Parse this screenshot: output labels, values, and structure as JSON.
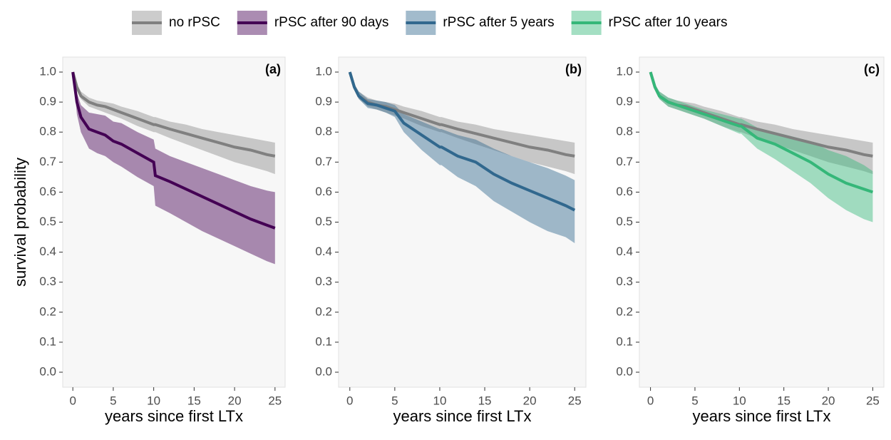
{
  "chart_data": [
    {
      "type": "line",
      "panel_label": "(a)",
      "xlabel": "years since first LTx",
      "ylabel": "survival probability",
      "xlim": [
        -1.25,
        26.25
      ],
      "xticks": [
        0,
        5,
        10,
        15,
        20,
        25
      ],
      "ylim": [
        -0.05,
        1.05
      ],
      "yticks": [
        {
          "value": 0,
          "label": "0.0"
        },
        0.1,
        0.2,
        0.3,
        0.4,
        0.5,
        0.6,
        0.7,
        0.8,
        0.9,
        {
          "value": 1,
          "label": "1.0"
        }
      ],
      "x": [
        0,
        0.5,
        1,
        2,
        3,
        4,
        5,
        6,
        8,
        10,
        10.2,
        12,
        14,
        16,
        18,
        20,
        22,
        24,
        25
      ],
      "series": [
        {
          "name": "no rPSC",
          "color": "#808080",
          "values": [
            1.0,
            0.95,
            0.92,
            0.9,
            0.89,
            0.885,
            0.875,
            0.865,
            0.845,
            0.825,
            0.825,
            0.81,
            0.795,
            0.78,
            0.765,
            0.75,
            0.74,
            0.725,
            0.72
          ],
          "lower": [
            1.0,
            0.94,
            0.91,
            0.885,
            0.875,
            0.865,
            0.855,
            0.845,
            0.82,
            0.8,
            0.8,
            0.78,
            0.76,
            0.74,
            0.72,
            0.7,
            0.685,
            0.67,
            0.66
          ],
          "upper": [
            1.0,
            0.96,
            0.935,
            0.915,
            0.905,
            0.9,
            0.895,
            0.885,
            0.87,
            0.85,
            0.85,
            0.835,
            0.825,
            0.81,
            0.8,
            0.79,
            0.78,
            0.77,
            0.765
          ]
        },
        {
          "name": "rPSC after 90 days",
          "color": "#440154",
          "values": [
            1.0,
            0.9,
            0.85,
            0.81,
            0.8,
            0.79,
            0.77,
            0.76,
            0.73,
            0.7,
            0.655,
            0.635,
            0.61,
            0.585,
            0.56,
            0.535,
            0.51,
            0.49,
            0.48
          ],
          "lower": [
            1.0,
            0.86,
            0.8,
            0.745,
            0.73,
            0.72,
            0.7,
            0.685,
            0.65,
            0.62,
            0.555,
            0.53,
            0.5,
            0.47,
            0.445,
            0.42,
            0.395,
            0.37,
            0.36
          ],
          "upper": [
            1.0,
            0.93,
            0.89,
            0.865,
            0.86,
            0.855,
            0.835,
            0.83,
            0.8,
            0.775,
            0.745,
            0.72,
            0.7,
            0.68,
            0.66,
            0.64,
            0.62,
            0.605,
            0.6
          ]
        }
      ]
    },
    {
      "type": "line",
      "panel_label": "(b)",
      "xlabel": "years since first LTx",
      "xlim": [
        -1.25,
        26.25
      ],
      "xticks": [
        0,
        5,
        10,
        15,
        20,
        25
      ],
      "ylim": [
        -0.05,
        1.05
      ],
      "yticks": [
        {
          "value": 0,
          "label": "0.0"
        },
        0.1,
        0.2,
        0.3,
        0.4,
        0.5,
        0.6,
        0.7,
        0.8,
        0.9,
        {
          "value": 1,
          "label": "1.0"
        }
      ],
      "x": [
        0,
        0.5,
        1,
        2,
        3,
        4,
        5,
        6,
        8,
        10,
        10.2,
        12,
        14,
        16,
        18,
        20,
        22,
        24,
        25
      ],
      "series": [
        {
          "name": "no rPSC",
          "color": "#808080",
          "values": [
            1.0,
            0.95,
            0.92,
            0.9,
            0.89,
            0.885,
            0.875,
            0.865,
            0.845,
            0.825,
            0.825,
            0.81,
            0.795,
            0.78,
            0.765,
            0.75,
            0.74,
            0.725,
            0.72
          ],
          "lower": [
            1.0,
            0.94,
            0.91,
            0.885,
            0.875,
            0.865,
            0.855,
            0.845,
            0.82,
            0.8,
            0.8,
            0.78,
            0.76,
            0.74,
            0.72,
            0.7,
            0.685,
            0.67,
            0.66
          ],
          "upper": [
            1.0,
            0.96,
            0.935,
            0.915,
            0.905,
            0.9,
            0.895,
            0.885,
            0.87,
            0.85,
            0.85,
            0.835,
            0.825,
            0.81,
            0.8,
            0.79,
            0.78,
            0.77,
            0.765
          ]
        },
        {
          "name": "rPSC after 5 years",
          "color": "#31688e",
          "values": [
            1.0,
            0.95,
            0.92,
            0.895,
            0.89,
            0.88,
            0.87,
            0.83,
            0.79,
            0.75,
            0.75,
            0.72,
            0.7,
            0.66,
            0.63,
            0.605,
            0.58,
            0.555,
            0.54
          ],
          "lower": [
            1.0,
            0.94,
            0.91,
            0.88,
            0.875,
            0.865,
            0.85,
            0.8,
            0.74,
            0.69,
            0.69,
            0.65,
            0.62,
            0.57,
            0.535,
            0.5,
            0.47,
            0.45,
            0.43
          ],
          "upper": [
            1.0,
            0.96,
            0.935,
            0.91,
            0.905,
            0.9,
            0.89,
            0.86,
            0.835,
            0.81,
            0.81,
            0.79,
            0.775,
            0.745,
            0.72,
            0.7,
            0.68,
            0.655,
            0.64
          ]
        }
      ]
    },
    {
      "type": "line",
      "panel_label": "(c)",
      "xlabel": "years since first LTx",
      "xlim": [
        -1.25,
        26.25
      ],
      "xticks": [
        0,
        5,
        10,
        15,
        20,
        25
      ],
      "ylim": [
        -0.05,
        1.05
      ],
      "yticks": [
        {
          "value": 0,
          "label": "0.0"
        },
        0.1,
        0.2,
        0.3,
        0.4,
        0.5,
        0.6,
        0.7,
        0.8,
        0.9,
        {
          "value": 1,
          "label": "1.0"
        }
      ],
      "x": [
        0,
        0.5,
        1,
        2,
        3,
        4,
        5,
        6,
        8,
        10,
        10.2,
        12,
        14,
        16,
        18,
        20,
        22,
        24,
        25
      ],
      "series": [
        {
          "name": "no rPSC",
          "color": "#808080",
          "values": [
            1.0,
            0.95,
            0.92,
            0.9,
            0.89,
            0.885,
            0.875,
            0.865,
            0.845,
            0.825,
            0.825,
            0.81,
            0.795,
            0.78,
            0.765,
            0.75,
            0.74,
            0.725,
            0.72
          ],
          "lower": [
            1.0,
            0.94,
            0.91,
            0.885,
            0.875,
            0.865,
            0.855,
            0.845,
            0.82,
            0.8,
            0.8,
            0.78,
            0.76,
            0.74,
            0.72,
            0.7,
            0.685,
            0.67,
            0.66
          ],
          "upper": [
            1.0,
            0.96,
            0.935,
            0.915,
            0.905,
            0.9,
            0.895,
            0.885,
            0.87,
            0.85,
            0.85,
            0.835,
            0.825,
            0.81,
            0.8,
            0.79,
            0.78,
            0.77,
            0.765
          ]
        },
        {
          "name": "rPSC after 10 years",
          "color": "#35b779",
          "values": [
            1.0,
            0.95,
            0.92,
            0.9,
            0.89,
            0.88,
            0.87,
            0.86,
            0.84,
            0.82,
            0.82,
            0.78,
            0.76,
            0.73,
            0.7,
            0.66,
            0.63,
            0.61,
            0.6
          ],
          "lower": [
            1.0,
            0.94,
            0.91,
            0.885,
            0.875,
            0.865,
            0.855,
            0.845,
            0.82,
            0.795,
            0.795,
            0.745,
            0.71,
            0.67,
            0.63,
            0.58,
            0.54,
            0.51,
            0.5
          ],
          "upper": [
            1.0,
            0.96,
            0.935,
            0.915,
            0.905,
            0.895,
            0.885,
            0.875,
            0.86,
            0.845,
            0.845,
            0.815,
            0.8,
            0.785,
            0.77,
            0.74,
            0.72,
            0.69,
            0.67
          ]
        }
      ]
    }
  ]
}
